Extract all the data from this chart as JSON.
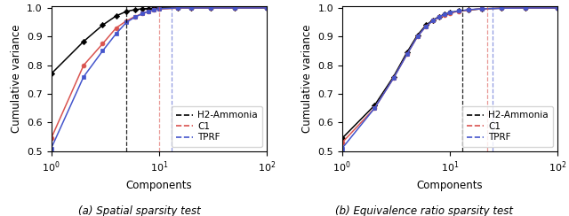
{
  "left_plot": {
    "h2_ammonia": {
      "x": [
        1,
        2,
        3,
        4,
        5,
        6,
        7,
        8,
        9,
        10,
        15,
        20,
        30,
        50,
        100
      ],
      "y": [
        0.77,
        0.883,
        0.94,
        0.972,
        0.988,
        0.994,
        0.997,
        0.998,
        0.999,
        1.0,
        1.0,
        1.0,
        1.0,
        1.0,
        1.0
      ],
      "color": "black",
      "marker": "D",
      "markersize": 3.2,
      "vline_x": 5
    },
    "c1": {
      "x": [
        1,
        2,
        3,
        4,
        5,
        6,
        7,
        8,
        9,
        10,
        15,
        20,
        30,
        50,
        100
      ],
      "y": [
        0.545,
        0.8,
        0.875,
        0.93,
        0.955,
        0.97,
        0.98,
        0.988,
        0.993,
        0.996,
        0.999,
        1.0,
        1.0,
        1.0,
        1.0
      ],
      "color": "#d9534f",
      "marker": "o",
      "markersize": 3.5,
      "vline_x": 10
    },
    "tprf": {
      "x": [
        1,
        2,
        3,
        4,
        5,
        6,
        7,
        8,
        9,
        10,
        15,
        20,
        30,
        50,
        100
      ],
      "y": [
        0.51,
        0.76,
        0.85,
        0.91,
        0.95,
        0.968,
        0.98,
        0.988,
        0.993,
        0.997,
        1.0,
        1.0,
        1.0,
        1.0,
        1.0
      ],
      "color": "#4455cc",
      "marker": "s",
      "markersize": 3.2,
      "vline_x": 13
    },
    "ylim": [
      0.5,
      1.005
    ],
    "yticks": [
      0.5,
      0.6,
      0.7,
      0.8,
      0.9,
      1.0
    ],
    "ylabel": "Cumulative variance",
    "xlabel": "Components",
    "subtitle": "(a) Spatial sparsity test"
  },
  "right_plot": {
    "h2_ammonia": {
      "x": [
        1,
        2,
        3,
        4,
        5,
        6,
        7,
        8,
        9,
        10,
        12,
        15,
        20,
        30,
        50,
        100
      ],
      "y": [
        0.545,
        0.66,
        0.76,
        0.845,
        0.905,
        0.94,
        0.958,
        0.97,
        0.978,
        0.984,
        0.989,
        0.993,
        0.997,
        0.999,
        1.0,
        1.0
      ],
      "color": "black",
      "marker": "D",
      "markersize": 3.2,
      "vline_x": 13
    },
    "c1": {
      "x": [
        1,
        2,
        3,
        4,
        5,
        6,
        7,
        8,
        9,
        10,
        12,
        15,
        20,
        30,
        50,
        100
      ],
      "y": [
        0.53,
        0.65,
        0.755,
        0.838,
        0.9,
        0.936,
        0.956,
        0.968,
        0.976,
        0.982,
        0.988,
        0.993,
        0.997,
        0.999,
        1.0,
        1.0
      ],
      "color": "#d9534f",
      "marker": "o",
      "markersize": 3.5,
      "vline_x": 22
    },
    "tprf": {
      "x": [
        1,
        2,
        3,
        4,
        5,
        6,
        7,
        8,
        9,
        10,
        12,
        15,
        20,
        30,
        50,
        100
      ],
      "y": [
        0.51,
        0.65,
        0.755,
        0.838,
        0.9,
        0.936,
        0.956,
        0.97,
        0.978,
        0.984,
        0.989,
        0.994,
        0.997,
        0.999,
        1.0,
        1.0
      ],
      "color": "#4455cc",
      "marker": "s",
      "markersize": 3.2,
      "vline_x": 25
    },
    "ylim": [
      0.5,
      1.005
    ],
    "yticks": [
      0.5,
      0.6,
      0.7,
      0.8,
      0.9,
      1.0
    ],
    "ylabel": "Cumulative variance",
    "xlabel": "Components",
    "subtitle": "(b) Equivalence ratio sparsity test"
  },
  "legend_entries": [
    {
      "label": "H2-Ammonia",
      "color": "black"
    },
    {
      "label": "C1",
      "color": "#d9534f"
    },
    {
      "label": "TPRF",
      "color": "#4455cc"
    }
  ]
}
